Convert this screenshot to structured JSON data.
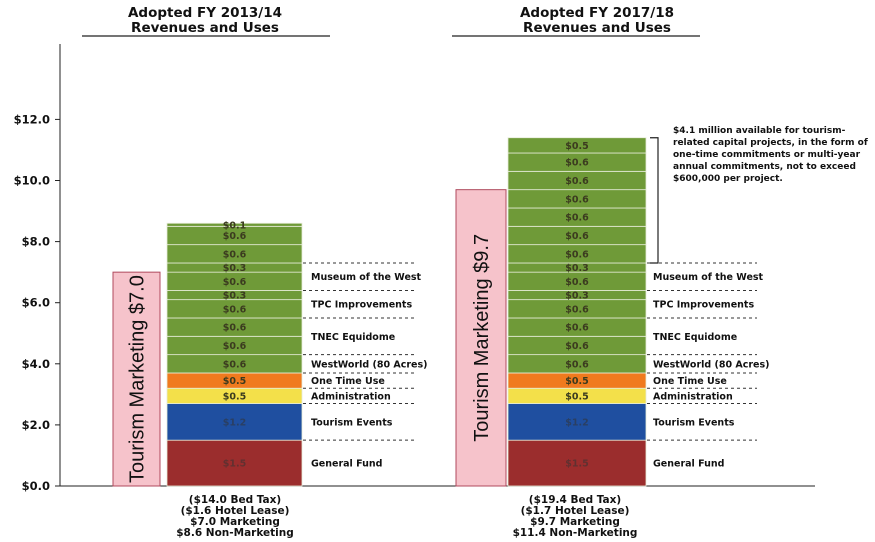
{
  "chart_data": {
    "type": "bar",
    "ylim": [
      0,
      12
    ],
    "yticks": [
      "$0.0",
      "$2.0",
      "$4.0",
      "$6.0",
      "$8.0",
      "$10.0",
      "$12.0"
    ],
    "grid": false,
    "colors": {
      "general_fund": "#9b2d2d",
      "tourism_events": "#1f4fa0",
      "administration": "#f3e04a",
      "one_time_use": "#f07a1e",
      "green": "#6f9a38",
      "marketing_fill": "#f6c3cb",
      "marketing_edge": "#b04a5e"
    },
    "category_labels": [
      "General Fund",
      "Tourism Events",
      "Administration",
      "One Time Use",
      "WestWorld (80 Acres)",
      "TNEC Equidome",
      "TPC Improvements",
      "Museum of the West"
    ],
    "panels": [
      {
        "title_line1": "Adopted FY 2013/14",
        "title_line2": "Revenues and Uses",
        "marketing_label": "Tourism Marketing $7.0",
        "marketing_value": 7.0,
        "segments": [
          {
            "label": "$1.5",
            "value": 1.5,
            "color_key": "general_fund"
          },
          {
            "label": "$1.2",
            "value": 1.2,
            "color_key": "tourism_events"
          },
          {
            "label": "$0.5",
            "value": 0.5,
            "color_key": "administration"
          },
          {
            "label": "$0.5",
            "value": 0.5,
            "color_key": "one_time_use"
          },
          {
            "label": "$0.6",
            "value": 0.6,
            "color_key": "green"
          },
          {
            "label": "$0.6",
            "value": 0.6,
            "color_key": "green"
          },
          {
            "label": "$0.6",
            "value": 0.6,
            "color_key": "green"
          },
          {
            "label": "$0.6",
            "value": 0.6,
            "color_key": "green"
          },
          {
            "label": "$0.3",
            "value": 0.3,
            "color_key": "green"
          },
          {
            "label": "$0.6",
            "value": 0.6,
            "color_key": "green"
          },
          {
            "label": "$0.3",
            "value": 0.3,
            "color_key": "green"
          },
          {
            "label": "$0.6",
            "value": 0.6,
            "color_key": "green"
          },
          {
            "label": "$0.6",
            "value": 0.6,
            "color_key": "green"
          },
          {
            "label": "$0.1",
            "value": 0.1,
            "color_key": "green"
          }
        ],
        "footer": [
          "($14.0 Bed Tax)",
          "($1.6 Hotel Lease)",
          "$7.0 Marketing",
          "$8.6 Non-Marketing"
        ]
      },
      {
        "title_line1": "Adopted FY 2017/18",
        "title_line2": "Revenues and Uses",
        "marketing_label": "Tourism Marketing $9.7",
        "marketing_value": 9.7,
        "segments": [
          {
            "label": "$1.5",
            "value": 1.5,
            "color_key": "general_fund"
          },
          {
            "label": "$1.2",
            "value": 1.2,
            "color_key": "tourism_events"
          },
          {
            "label": "$0.5",
            "value": 0.5,
            "color_key": "administration"
          },
          {
            "label": "$0.5",
            "value": 0.5,
            "color_key": "one_time_use"
          },
          {
            "label": "$0.6",
            "value": 0.6,
            "color_key": "green"
          },
          {
            "label": "$0.6",
            "value": 0.6,
            "color_key": "green"
          },
          {
            "label": "$0.6",
            "value": 0.6,
            "color_key": "green"
          },
          {
            "label": "$0.6",
            "value": 0.6,
            "color_key": "green"
          },
          {
            "label": "$0.3",
            "value": 0.3,
            "color_key": "green"
          },
          {
            "label": "$0.6",
            "value": 0.6,
            "color_key": "green"
          },
          {
            "label": "$0.3",
            "value": 0.3,
            "color_key": "green"
          },
          {
            "label": "$0.6",
            "value": 0.6,
            "color_key": "green"
          },
          {
            "label": "$0.6",
            "value": 0.6,
            "color_key": "green"
          },
          {
            "label": "$0.6",
            "value": 0.6,
            "color_key": "green"
          },
          {
            "label": "$0.6",
            "value": 0.6,
            "color_key": "green"
          },
          {
            "label": "$0.6",
            "value": 0.6,
            "color_key": "green"
          },
          {
            "label": "$0.6",
            "value": 0.6,
            "color_key": "green"
          },
          {
            "label": "$0.5",
            "value": 0.5,
            "color_key": "green"
          }
        ],
        "annotation": [
          "$4.1 million available for tourism-",
          "related capital projects, in the form of",
          "one-time commitments or multi-year",
          "annual commitments, not to exceed",
          "$600,000 per project."
        ],
        "footer": [
          "($19.4 Bed Tax)",
          "($1.7 Hotel Lease)",
          "$9.7 Marketing",
          "$11.4 Non-Marketing"
        ]
      }
    ]
  }
}
